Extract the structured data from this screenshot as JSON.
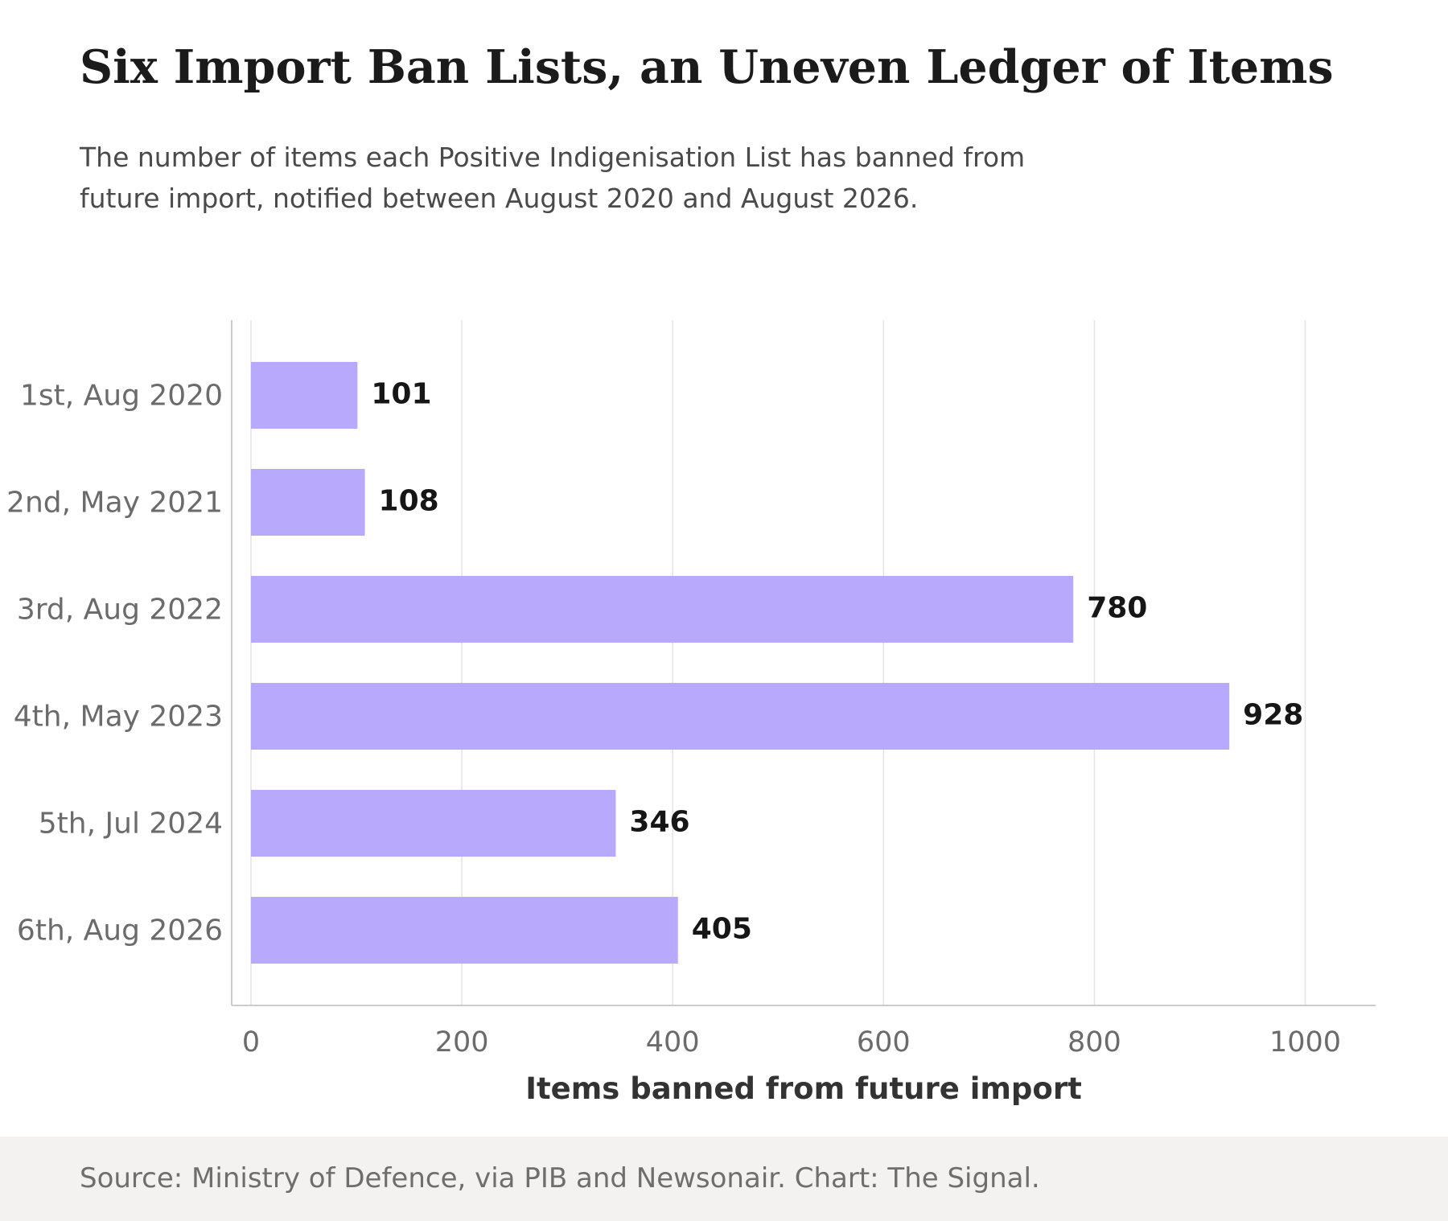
{
  "header": {
    "title": "Six Import Ban Lists, an Uneven Ledger of Items",
    "subtitle": "The number of items each Positive Indigenisation List has banned from\nfuture import, notified between August 2020 and August 2026."
  },
  "footer": {
    "source": "Source: Ministry of Defence, via PIB and Newsonair. Chart: The Signal."
  },
  "colors": {
    "bar": "#b8a9fd",
    "grid": "#e3e3e3",
    "axis": "#cccccc",
    "tick_label": "#6b6b6b",
    "value_label": "#161616",
    "axis_title": "#333333"
  },
  "chart_data": {
    "type": "bar",
    "orientation": "horizontal",
    "categories": [
      "1st, Aug 2020",
      "2nd, May 2021",
      "3rd, Aug 2022",
      "4th, May 2023",
      "5th, Jul 2024",
      "6th, Aug 2026"
    ],
    "values": [
      101,
      108,
      780,
      928,
      346,
      405
    ],
    "xlabel": "Items banned from future import",
    "ylabel": "",
    "xlim": [
      0,
      1065
    ],
    "xticks": [
      0,
      200,
      400,
      600,
      800,
      1000
    ],
    "grid": "vertical",
    "legend": "none",
    "data_labels": true
  }
}
